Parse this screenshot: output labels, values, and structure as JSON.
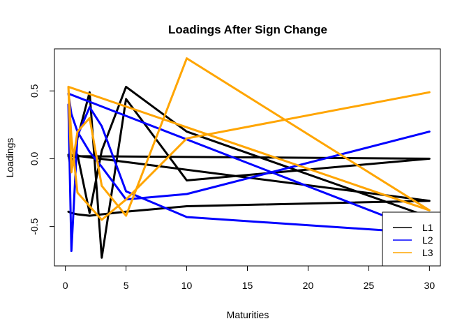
{
  "chart_data": {
    "type": "line",
    "title": "Loadings After Sign Change",
    "xlabel": "Maturities",
    "ylabel": "Loadings",
    "xlim": [
      -0.9,
      30.9
    ],
    "ylim": [
      -0.79,
      0.81
    ],
    "x_ticks": [
      0,
      5,
      10,
      15,
      20,
      25,
      30
    ],
    "y_ticks": [
      -0.5,
      0.0,
      0.5
    ],
    "x_tick_labels": [
      "0",
      "5",
      "10",
      "15",
      "20",
      "25",
      "30"
    ],
    "y_tick_labels": [
      "-0.5",
      "0.0",
      "0.5"
    ],
    "grid": false,
    "legend_position": "bottom-right",
    "series": [
      {
        "name": "L1",
        "color": "#000000",
        "legend": true,
        "x": [
          0.25,
          0.5,
          1,
          2,
          3,
          5,
          10,
          30,
          0.25,
          0.5,
          1,
          2,
          3,
          5,
          10,
          30,
          0.25,
          0.5,
          1,
          2,
          3,
          5,
          10,
          30
        ],
        "y": [
          -0.39,
          -0.4,
          -0.41,
          -0.42,
          -0.41,
          -0.39,
          -0.35,
          -0.31,
          0.03,
          -0.09,
          0.15,
          0.49,
          -0.73,
          0.44,
          -0.16,
          0.0,
          0.02,
          -0.01,
          0.03,
          -0.4,
          0.06,
          0.53,
          0.2,
          -0.43
        ]
      },
      {
        "name": "L2",
        "color": "#0000ff",
        "legend": true,
        "x": [
          0.25,
          0.5,
          1,
          2,
          3,
          5,
          10,
          30,
          0.25,
          0.5,
          1,
          2,
          3,
          5,
          10,
          30
        ],
        "y": [
          0.4,
          -0.68,
          0.17,
          0.38,
          0.24,
          -0.24,
          -0.43,
          -0.55,
          0.48,
          0.33,
          0.2,
          0.05,
          -0.06,
          -0.3,
          -0.26,
          0.2
        ]
      },
      {
        "name": "L3",
        "color": "#ffa500",
        "legend": true,
        "x": [
          0.25,
          0.5,
          1,
          2,
          3,
          5,
          10,
          30,
          0.25,
          0.5,
          1,
          2,
          3,
          5,
          10,
          30
        ],
        "y": [
          0.53,
          -0.1,
          0.2,
          0.3,
          -0.2,
          -0.42,
          0.74,
          -0.38,
          0.53,
          0.16,
          -0.25,
          -0.35,
          -0.45,
          -0.3,
          0.15,
          0.49
        ]
      }
    ]
  }
}
